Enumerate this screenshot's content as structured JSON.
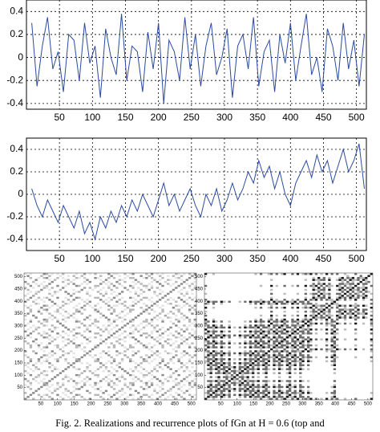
{
  "chart_data": [
    {
      "type": "line",
      "x": [
        8,
        16,
        24,
        32,
        40,
        48,
        56,
        64,
        72,
        80,
        88,
        96,
        104,
        112,
        120,
        128,
        136,
        144,
        152,
        160,
        168,
        176,
        184,
        192,
        200,
        208,
        216,
        224,
        232,
        240,
        248,
        256,
        264,
        272,
        280,
        288,
        296,
        304,
        312,
        320,
        328,
        336,
        344,
        352,
        360,
        368,
        376,
        384,
        392,
        400,
        408,
        416,
        424,
        432,
        440,
        448,
        456,
        464,
        472,
        480,
        488,
        496,
        504,
        512
      ],
      "series": [
        {
          "color": "#2b4aa0",
          "values": [
            0.3,
            -0.25,
            0.1,
            0.35,
            -0.1,
            0.05,
            -0.3,
            0.2,
            0.15,
            -0.2,
            0.3,
            -0.05,
            0.1,
            -0.35,
            0.25,
            0.0,
            -0.15,
            0.38,
            -0.2,
            0.1,
            0.05,
            -0.3,
            0.22,
            -0.1,
            0.3,
            -0.4,
            0.15,
            0.05,
            -0.2,
            0.35,
            -0.1,
            0.2,
            -0.25,
            0.1,
            0.3,
            -0.15,
            0.0,
            0.25,
            -0.35,
            0.1,
            0.2,
            -0.1,
            0.35,
            -0.25,
            0.05,
            0.15,
            -0.3,
            0.2,
            -0.05,
            0.3,
            -0.2,
            0.1,
            0.38,
            -0.15,
            0.0,
            -0.3,
            0.25,
            0.1,
            -0.2,
            0.3,
            -0.1,
            0.15,
            -0.25,
            0.2
          ]
        }
      ],
      "xlim": [
        0,
        515
      ],
      "xticks": [
        50,
        100,
        150,
        200,
        250,
        300,
        350,
        400,
        450,
        500
      ],
      "ylim": [
        -0.45,
        0.5
      ],
      "yticks": [
        0.4,
        0.2,
        0,
        -0.2,
        -0.4
      ],
      "grid": true
    },
    {
      "type": "line",
      "x": [
        8,
        16,
        24,
        32,
        40,
        48,
        56,
        64,
        72,
        80,
        88,
        96,
        104,
        112,
        120,
        128,
        136,
        144,
        152,
        160,
        168,
        176,
        184,
        192,
        200,
        208,
        216,
        224,
        232,
        240,
        248,
        256,
        264,
        272,
        280,
        288,
        296,
        304,
        312,
        320,
        328,
        336,
        344,
        352,
        360,
        368,
        376,
        384,
        392,
        400,
        408,
        416,
        424,
        432,
        440,
        448,
        456,
        464,
        472,
        480,
        488,
        496,
        504,
        512
      ],
      "series": [
        {
          "color": "#2b4aa0",
          "values": [
            0.05,
            -0.1,
            -0.2,
            -0.05,
            -0.15,
            -0.25,
            -0.1,
            -0.2,
            -0.3,
            -0.15,
            -0.35,
            -0.25,
            -0.4,
            -0.2,
            -0.3,
            -0.15,
            -0.25,
            -0.1,
            -0.2,
            -0.05,
            -0.15,
            0.0,
            -0.1,
            -0.2,
            -0.05,
            0.1,
            -0.1,
            0.0,
            -0.15,
            -0.05,
            0.05,
            -0.1,
            -0.2,
            0.0,
            -0.1,
            0.05,
            -0.15,
            -0.05,
            0.1,
            -0.05,
            0.05,
            0.2,
            0.1,
            0.3,
            0.15,
            0.25,
            0.05,
            0.2,
            0.0,
            -0.1,
            0.1,
            0.2,
            0.3,
            0.15,
            0.35,
            0.2,
            0.3,
            0.1,
            0.25,
            0.4,
            0.2,
            0.3,
            0.45,
            0.05
          ]
        }
      ],
      "xlim": [
        0,
        515
      ],
      "xticks": [
        50,
        100,
        150,
        200,
        250,
        300,
        350,
        400,
        450,
        500
      ],
      "ylim": [
        -0.5,
        0.5
      ],
      "yticks": [
        0.4,
        0.2,
        0,
        -0.2,
        -0.4
      ],
      "grid": true
    },
    {
      "type": "recurrence",
      "xlim": [
        0,
        515
      ],
      "ylim": [
        0,
        515
      ],
      "xticks": [
        50,
        100,
        150,
        200,
        250,
        300,
        350,
        400,
        450,
        500
      ],
      "yticks": [
        50,
        100,
        150,
        200,
        250,
        300,
        350,
        400,
        450,
        500
      ]
    },
    {
      "type": "recurrence",
      "xlim": [
        0,
        515
      ],
      "ylim": [
        0,
        515
      ],
      "xticks": [
        50,
        100,
        150,
        200,
        250,
        300,
        350,
        400,
        450,
        500
      ],
      "yticks": [
        50,
        100,
        150,
        200,
        250,
        300,
        350,
        400,
        450,
        500
      ]
    }
  ],
  "caption": "Fig. 2.  Realizations and recurrence plots of fGn at  H = 0.6  (top and"
}
